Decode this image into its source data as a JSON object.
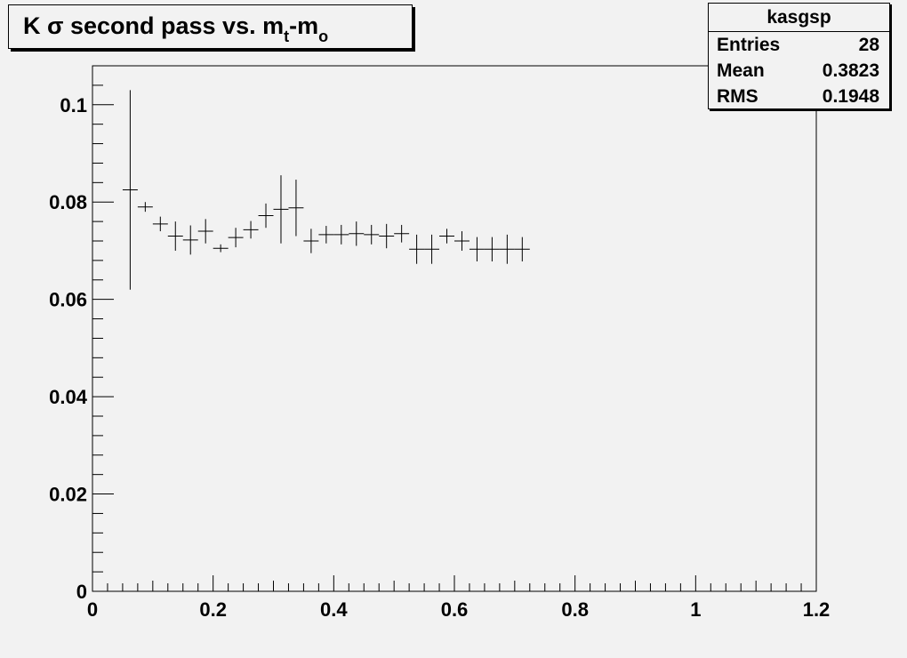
{
  "title": {
    "prefix": "K ",
    "sigma": "σ",
    "middle": " second pass vs. m",
    "sub1": "t",
    "dash": "-m",
    "sub2": "o"
  },
  "stats": {
    "name": "kasgsp",
    "rows": [
      {
        "label": "Entries",
        "value": "28"
      },
      {
        "label": "Mean",
        "value": "0.3823"
      },
      {
        "label": "RMS",
        "value": "0.1948"
      }
    ]
  },
  "chart_data": {
    "type": "scatter",
    "title": "K σ second pass vs. mt-mo",
    "xlim": [
      0,
      1.2
    ],
    "ylim": [
      0,
      0.108
    ],
    "x_ticks": [
      "0",
      "0.2",
      "0.4",
      "0.6",
      "0.8",
      "1",
      "1.2"
    ],
    "y_ticks": [
      "0",
      "0.02",
      "0.04",
      "0.06",
      "0.08",
      "0.1"
    ],
    "bin_width": 0.025,
    "points": [
      {
        "x": 0.0625,
        "y": 0.0825,
        "yerr": 0.0205
      },
      {
        "x": 0.0875,
        "y": 0.079,
        "yerr": 0.001
      },
      {
        "x": 0.1125,
        "y": 0.0755,
        "yerr": 0.0015
      },
      {
        "x": 0.1375,
        "y": 0.073,
        "yerr": 0.003
      },
      {
        "x": 0.1625,
        "y": 0.0722,
        "yerr": 0.003
      },
      {
        "x": 0.1875,
        "y": 0.074,
        "yerr": 0.0025
      },
      {
        "x": 0.2125,
        "y": 0.0705,
        "yerr": 0.0008
      },
      {
        "x": 0.2375,
        "y": 0.0727,
        "yerr": 0.002
      },
      {
        "x": 0.2625,
        "y": 0.0743,
        "yerr": 0.0018
      },
      {
        "x": 0.2875,
        "y": 0.0772,
        "yerr": 0.0025
      },
      {
        "x": 0.3125,
        "y": 0.0785,
        "yerr": 0.007
      },
      {
        "x": 0.3375,
        "y": 0.0788,
        "yerr": 0.0058
      },
      {
        "x": 0.3625,
        "y": 0.072,
        "yerr": 0.0025
      },
      {
        "x": 0.3875,
        "y": 0.0733,
        "yerr": 0.0018
      },
      {
        "x": 0.4125,
        "y": 0.0733,
        "yerr": 0.002
      },
      {
        "x": 0.4375,
        "y": 0.0735,
        "yerr": 0.0025
      },
      {
        "x": 0.4625,
        "y": 0.0733,
        "yerr": 0.002
      },
      {
        "x": 0.4875,
        "y": 0.073,
        "yerr": 0.0025
      },
      {
        "x": 0.5125,
        "y": 0.0735,
        "yerr": 0.0018
      },
      {
        "x": 0.5375,
        "y": 0.0703,
        "yerr": 0.003
      },
      {
        "x": 0.5625,
        "y": 0.0703,
        "yerr": 0.003
      },
      {
        "x": 0.5875,
        "y": 0.073,
        "yerr": 0.0015
      },
      {
        "x": 0.6125,
        "y": 0.072,
        "yerr": 0.002
      },
      {
        "x": 0.6375,
        "y": 0.0703,
        "yerr": 0.0025
      },
      {
        "x": 0.6625,
        "y": 0.0703,
        "yerr": 0.0025
      },
      {
        "x": 0.6875,
        "y": 0.0703,
        "yerr": 0.003
      },
      {
        "x": 0.7125,
        "y": 0.0703,
        "yerr": 0.0025
      }
    ],
    "grid": false,
    "colors": {
      "marker": "#000000",
      "background": "#f2f2f2",
      "frame": "#000000"
    }
  }
}
